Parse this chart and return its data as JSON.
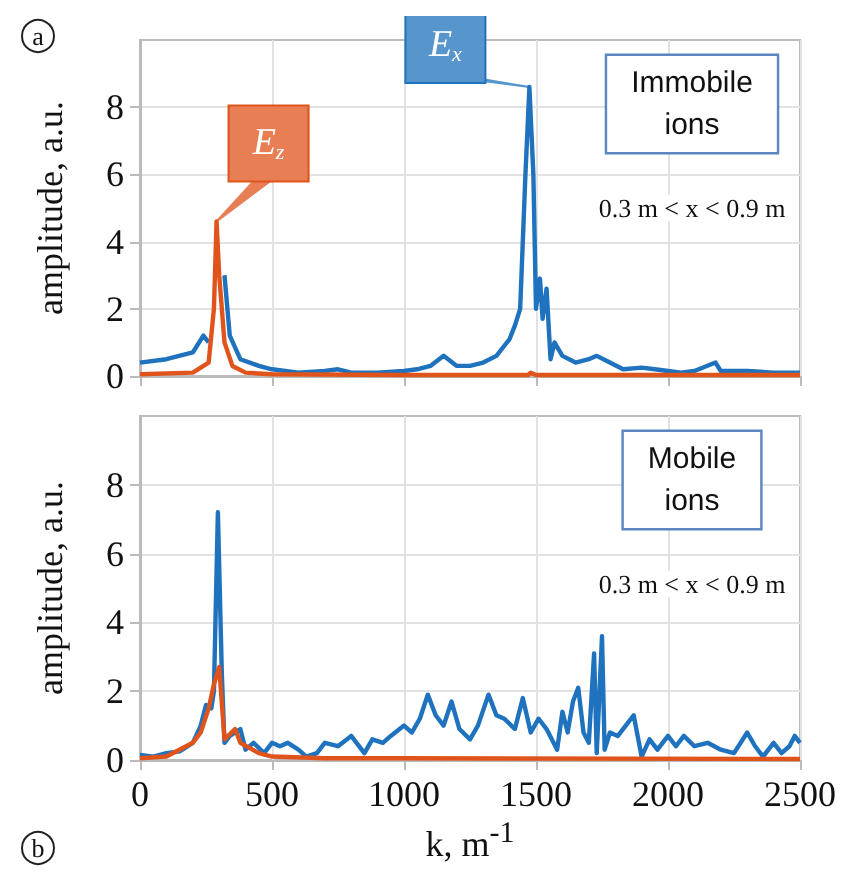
{
  "chart_data": [
    {
      "type": "line",
      "ylabel": "amplitude, a.u.",
      "xlim": [
        0,
        2500
      ],
      "xticks": [
        0,
        500,
        1000,
        1500,
        2000,
        2500
      ],
      "ylim": [
        0,
        10
      ],
      "yticks": [
        0,
        2,
        4,
        6,
        8
      ],
      "tick_labels": "y",
      "grid": true,
      "marker": "none",
      "line_style": "solid",
      "annotations": [
        "a",
        "Immobile\nions",
        "0.3 m < x < 0.9 m",
        {
          "text": "E$_{x}$",
          "x": 1475,
          "y": 8.6
        },
        {
          "text": "E$_{z}$",
          "x": 290,
          "y": 4.6
        }
      ],
      "series": [
        {
          "color": "#1f72bd",
          "x": [
            0,
            100,
            200,
            240,
            260,
            280,
            300,
            320,
            340,
            380,
            450,
            500,
            600,
            700,
            750,
            800,
            900,
            1000,
            1050,
            1100,
            1150,
            1200,
            1250,
            1300,
            1350,
            1380,
            1400,
            1420,
            1440,
            1460,
            1475,
            1490,
            1500,
            1515,
            1525,
            1540,
            1555,
            1570,
            1600,
            1650,
            1700,
            1730,
            1780,
            1830,
            1900,
            1950,
            2000,
            2050,
            2100,
            2180,
            2200,
            2250,
            2300,
            2400,
            2500
          ],
          "values": [
            0.4,
            0.5,
            0.7,
            1.2,
            1.0,
            null,
            null,
            3,
            1.2,
            0.5,
            0.3,
            0.2,
            0.1,
            0.15,
            0.2,
            0.1,
            0.1,
            0.15,
            0.2,
            0.3,
            0.6,
            0.3,
            0.3,
            0.4,
            0.6,
            0.9,
            1.1,
            1.5,
            2.0,
            6,
            8.6,
            6,
            2.0,
            2.9,
            1.7,
            2.6,
            0.5,
            1.0,
            0.6,
            0.4,
            0.5,
            0.6,
            0.4,
            0.2,
            0.25,
            0.2,
            0.15,
            0.1,
            0.15,
            0.4,
            0.15,
            0.15,
            0.15,
            0.1,
            0.1
          ]
        },
        {
          "color": "#e0541c",
          "x": [
            0,
            200,
            260,
            280,
            290,
            300,
            320,
            350,
            400,
            500,
            1000,
            1470,
            1480,
            1500,
            2500
          ],
          "values": [
            0.05,
            0.1,
            0.4,
            2,
            4.6,
            3,
            1,
            0.3,
            0.1,
            0.05,
            0.03,
            0.03,
            0.1,
            0.03,
            0.03
          ]
        }
      ]
    },
    {
      "type": "line",
      "xlabel": "k, m$^{-1}$",
      "ylabel": "amplitude, a.u.",
      "xlim": [
        0,
        2500
      ],
      "xticks": [
        0,
        500,
        1000,
        1500,
        2000,
        2500
      ],
      "ylim": [
        0,
        10
      ],
      "yticks": [
        0,
        2,
        4,
        6,
        8
      ],
      "grid": true,
      "marker": "none",
      "line_style": "solid",
      "annotations": [
        "b",
        "Mobile\nions",
        "0.3 m < x < 0.9 m"
      ],
      "series": [
        {
          "color": "#1f72bd",
          "x": [
            0,
            50,
            100,
            150,
            200,
            230,
            250,
            270,
            280,
            295,
            310,
            320,
            340,
            360,
            380,
            400,
            430,
            470,
            500,
            530,
            560,
            600,
            630,
            670,
            700,
            750,
            800,
            850,
            880,
            920,
            950,
            1000,
            1030,
            1060,
            1090,
            1120,
            1150,
            1180,
            1210,
            1250,
            1280,
            1320,
            1350,
            1380,
            1420,
            1450,
            1480,
            1510,
            1540,
            1580,
            1600,
            1620,
            1640,
            1660,
            1680,
            1700,
            1720,
            1730,
            1750,
            1760,
            1780,
            1810,
            1840,
            1870,
            1900,
            1930,
            1960,
            2000,
            2030,
            2060,
            2100,
            2150,
            2200,
            2250,
            2300,
            2330,
            2360,
            2400,
            2430,
            2460,
            2480,
            2500
          ],
          "values": [
            0.15,
            0.1,
            0.2,
            0.25,
            0.5,
            1.0,
            1.6,
            1.5,
            2,
            7.2,
            2.5,
            0.5,
            0.7,
            0.8,
            0.9,
            0.3,
            0.5,
            0.2,
            0.5,
            0.4,
            0.5,
            0.3,
            0.1,
            0.2,
            0.5,
            0.4,
            0.7,
            0.2,
            0.6,
            0.5,
            0.7,
            1.0,
            0.8,
            1.2,
            1.9,
            1.3,
            1.0,
            1.7,
            0.9,
            0.6,
            1.0,
            1.9,
            1.3,
            1.2,
            0.9,
            1.8,
            0.8,
            1.2,
            0.9,
            0.3,
            1.4,
            0.8,
            1.7,
            2.1,
            0.8,
            0.5,
            3.1,
            0.2,
            3.6,
            0.3,
            0.8,
            0.7,
            1.0,
            1.3,
            0.1,
            0.6,
            0.3,
            0.7,
            0.4,
            0.7,
            0.4,
            0.5,
            0.3,
            0.2,
            0.8,
            0.4,
            0.1,
            0.5,
            0.2,
            0.4,
            0.7,
            0.5
          ]
        },
        {
          "color": "#e0541c",
          "x": [
            0,
            100,
            200,
            230,
            260,
            280,
            300,
            320,
            360,
            380,
            450,
            500,
            700,
            1000,
            2500
          ],
          "values": [
            0.05,
            0.1,
            0.5,
            0.8,
            1.5,
            2.2,
            2.7,
            0.6,
            0.9,
            0.5,
            0.2,
            0.1,
            0.05,
            0.05,
            0.03
          ]
        }
      ]
    }
  ]
}
